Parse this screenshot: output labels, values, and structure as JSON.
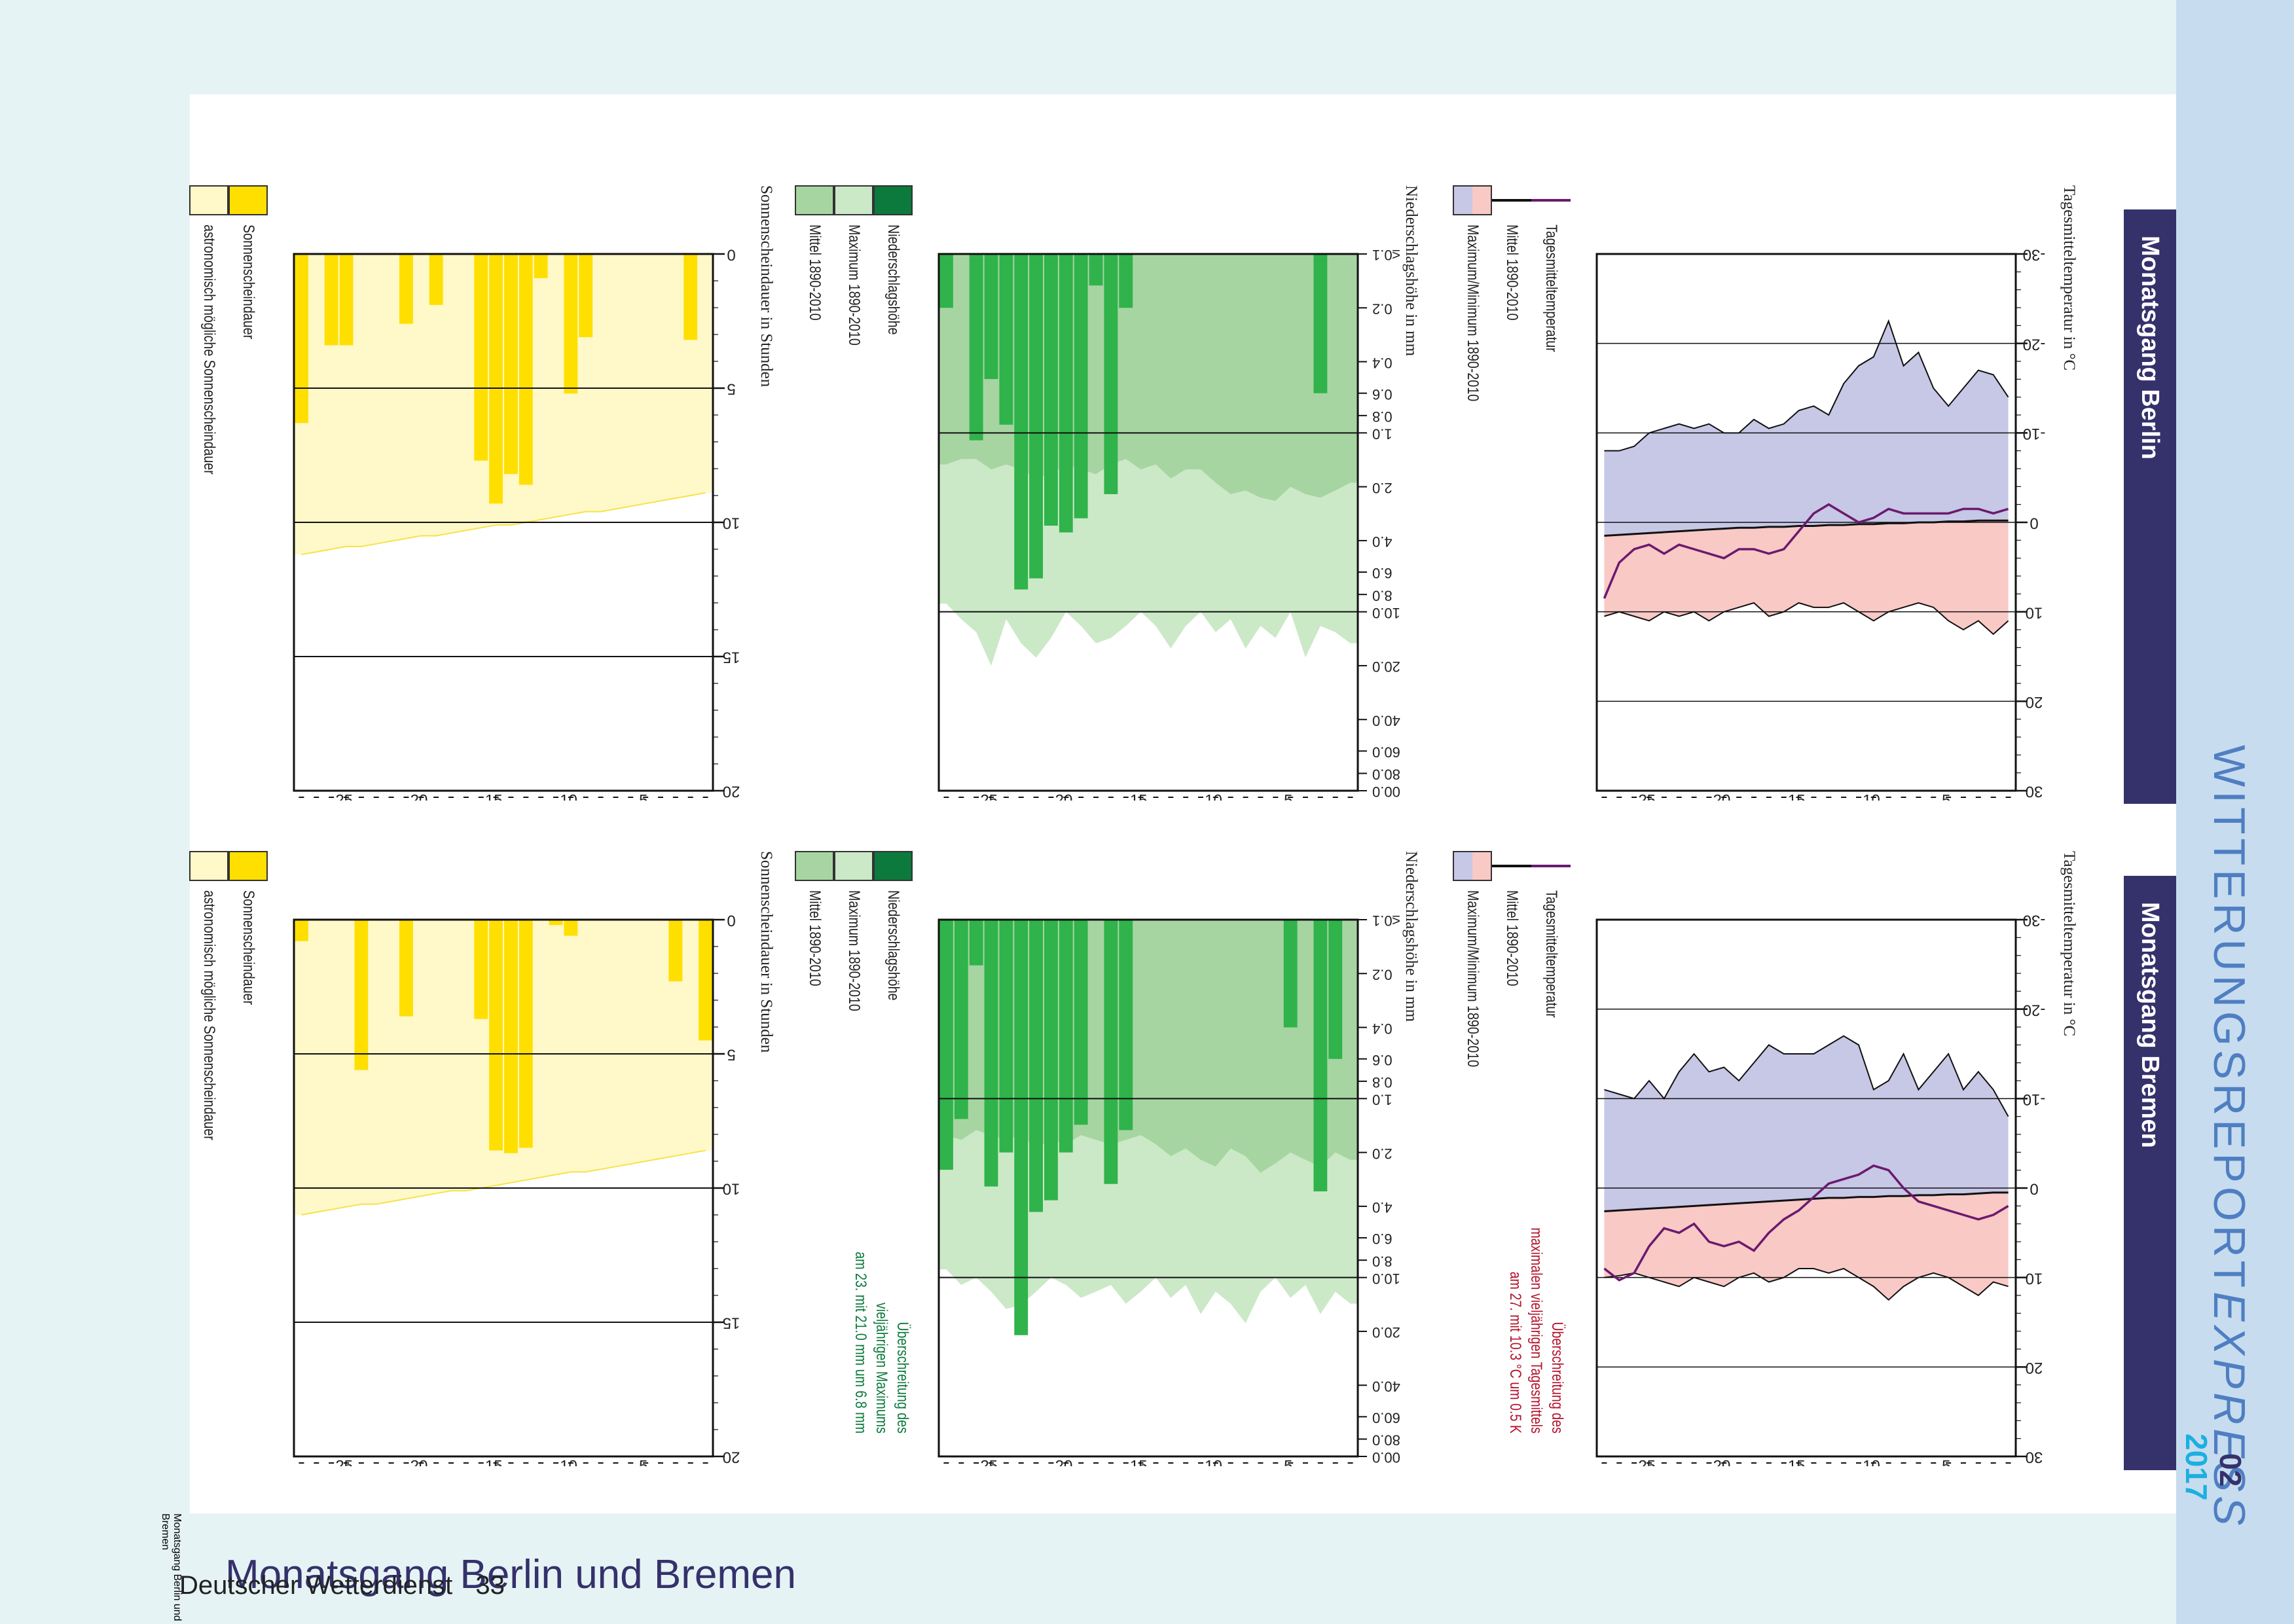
{
  "header": {
    "brand_main": "WITTERUNGSREPORT",
    "brand_italic": "EXPRESS",
    "issue_month": "02",
    "issue_year": "2017",
    "page_title": "Monatsgang Berlin und Bremen"
  },
  "footer": {
    "publisher": "Deutscher Wetterdienst",
    "page_number": "33"
  },
  "colors": {
    "top_band": "#c7dcef",
    "side_band": "#e6f3f5",
    "header_band": "#35316b",
    "brand_text": "#4f7fc2",
    "year_text": "#1ab0e0",
    "temp_max": "#f9c9c6",
    "temp_min": "#c7c7e6",
    "temp_daily": "#6b1a6e",
    "precip_bar": "#2fb34a",
    "precip_max": "#cbe9c7",
    "precip_mean": "#a6d5a2",
    "precip_legend_dark": "#0c7a3c",
    "sun_bar": "#ffdf00",
    "sun_astro": "#fff8c8",
    "note_red": "#b3122b",
    "note_green": "#0c7a3c"
  },
  "panels": [
    {
      "station_title": "Monatsgang Berlin",
      "temp_title": "Tagesmitteltemperatur in °C",
      "precip_title": "Niederschlagshöhe in mm",
      "sun_title": "Sonnenscheindauer in Stunden",
      "temp_legend": [
        "Tagesmitteltemperatur",
        "Mittel 1890-2010",
        "Maximum/Minimum 1890-2010"
      ],
      "precip_legend": [
        "Niederschlagshöhe",
        "Maximum 1890-2010",
        "Mittel 1890-2010"
      ],
      "sun_legend": [
        "Sonnenscheindauer",
        "astronomisch mögliche Sonnenscheindauer"
      ],
      "temp_note": "",
      "precip_note": ""
    },
    {
      "station_title": "Monatsgang Bremen",
      "temp_title": "Tagesmitteltemperatur in °C",
      "precip_title": "Niederschlagshöhe in mm",
      "sun_title": "Sonnenscheindauer in Stunden",
      "temp_legend": [
        "Tagesmitteltemperatur",
        "Mittel 1890-2010",
        "Maximum/Minimum 1890-2010"
      ],
      "precip_legend": [
        "Niederschlagshöhe",
        "Maximum 1890-2010",
        "Mittel 1890-2010"
      ],
      "sun_legend": [
        "Sonnenscheindauer",
        "astronomisch mögliche Sonnenscheindauer"
      ],
      "temp_note": "Überschreitung des\nmaximalen vieljährigen Tagesmittels\nam 27. mit 10.3 °C um 0.5 K",
      "precip_note": "Überschreitung des\nvieljährigen Maximums\nam 23. mit 21.0 mm um 6.8 mm"
    }
  ],
  "chart_data": [
    {
      "station": "Berlin",
      "type": "line",
      "xlabel": "",
      "ylabel": "Tagesmitteltemperatur in °C",
      "x_ticks": [
        "5.",
        "10.",
        "15.",
        "20.",
        "25."
      ],
      "y_ticks": [
        "-30",
        "-20",
        "-10",
        "0",
        "10",
        "20",
        "30"
      ],
      "xlim": [
        0.5,
        28.5
      ],
      "ylim": [
        -30,
        30
      ],
      "x": [
        1,
        2,
        3,
        4,
        5,
        6,
        7,
        8,
        9,
        10,
        11,
        12,
        13,
        14,
        15,
        16,
        17,
        18,
        19,
        20,
        21,
        22,
        23,
        24,
        25,
        26,
        27,
        28
      ],
      "series": [
        {
          "name": "Tagesmitteltemperatur",
          "values": [
            -1.5,
            -1,
            -1.5,
            -1.5,
            -1,
            -1,
            -1,
            -1,
            -1.5,
            -0.5,
            0,
            -1,
            -2,
            -1,
            1,
            3,
            3.5,
            3,
            3,
            4,
            3.5,
            3,
            2.5,
            3.5,
            2.5,
            3,
            4.5,
            8.5
          ]
        },
        {
          "name": "Mittel 1890-2010",
          "values": [
            -0.2,
            -0.2,
            -0.2,
            -0.1,
            -0.1,
            0,
            0,
            0.1,
            0.1,
            0.2,
            0.2,
            0.3,
            0.3,
            0.4,
            0.4,
            0.5,
            0.5,
            0.6,
            0.6,
            0.7,
            0.8,
            0.9,
            1,
            1.1,
            1.2,
            1.3,
            1.4,
            1.5
          ]
        },
        {
          "name": "Maximum 1890-2010",
          "values": [
            11,
            12.5,
            11,
            12,
            11,
            9.5,
            9,
            9.5,
            10,
            11,
            10,
            9,
            9.5,
            9.5,
            9,
            10,
            10.5,
            9,
            9.5,
            10,
            11,
            10,
            10.5,
            10,
            11,
            10.5,
            10,
            10.5
          ]
        },
        {
          "name": "Minimum 1890-2010",
          "values": [
            -14,
            -16.5,
            -17,
            -15,
            -13,
            -15,
            -19,
            -17.5,
            -22.5,
            -18.5,
            -17.5,
            -15.5,
            -12,
            -13,
            -12.5,
            -11,
            -10.5,
            -11.5,
            -10,
            -10,
            -11,
            -10.5,
            -11,
            -10.5,
            -10,
            -8.5,
            -8,
            -8
          ]
        }
      ]
    },
    {
      "station": "Berlin",
      "type": "bar",
      "xlabel": "",
      "ylabel": "Niederschlagshöhe in mm",
      "x_ticks": [
        "5.",
        "10.",
        "15.",
        "20.",
        "25."
      ],
      "y_ticks": [
        "≤0.1",
        "0.2",
        "0.4",
        "0.6",
        "0.8",
        "1.0",
        "2.0",
        "4.0",
        "6.0",
        "8.0",
        "10.0",
        "20.0",
        "40.0",
        "60.0",
        "80.0",
        "100.0"
      ],
      "y_scale": "log",
      "ylim": [
        0.1,
        100
      ],
      "categories": [
        1,
        2,
        3,
        4,
        5,
        6,
        7,
        8,
        9,
        10,
        11,
        12,
        13,
        14,
        15,
        16,
        17,
        18,
        19,
        20,
        21,
        22,
        23,
        24,
        25,
        26,
        27,
        28
      ],
      "series": [
        {
          "name": "Niederschlagshöhe",
          "values": [
            0,
            0,
            0.6,
            0,
            0,
            0,
            0,
            0,
            0,
            0,
            0,
            0,
            0,
            0,
            0,
            0.2,
            2.2,
            0.15,
            3,
            3.6,
            3.3,
            6.5,
            7.5,
            0.9,
            0.5,
            1.1,
            0,
            0.2
          ]
        },
        {
          "name": "Maximum 1890-2010",
          "values": [
            15,
            13,
            12,
            18,
            10,
            14,
            12,
            16,
            11,
            13,
            10,
            12,
            16,
            12,
            10,
            12,
            14,
            15,
            12,
            10,
            14,
            18,
            15,
            11,
            20,
            13,
            11,
            9
          ]
        },
        {
          "name": "Mittel 1890-2010",
          "values": [
            1.9,
            2.1,
            2.3,
            2.2,
            2,
            2.4,
            2.3,
            2.1,
            2.2,
            1.9,
            1.6,
            1.6,
            1.8,
            1.5,
            1.6,
            1.4,
            1.5,
            1.7,
            1.6,
            1.5,
            1.7,
            1.8,
            1.6,
            1.5,
            1.6,
            1.4,
            1.4,
            1.5
          ]
        }
      ]
    },
    {
      "station": "Berlin",
      "type": "bar",
      "xlabel": "",
      "ylabel": "Sonnenscheindauer in Stunden",
      "x_ticks": [
        "5.",
        "10.",
        "15.",
        "20.",
        "25."
      ],
      "y_ticks": [
        "0",
        "5",
        "10",
        "15",
        "20"
      ],
      "ylim": [
        0,
        20
      ],
      "categories": [
        1,
        2,
        3,
        4,
        5,
        6,
        7,
        8,
        9,
        10,
        11,
        12,
        13,
        14,
        15,
        16,
        17,
        18,
        19,
        20,
        21,
        22,
        23,
        24,
        25,
        26,
        27,
        28
      ],
      "series": [
        {
          "name": "Sonnenscheindauer",
          "values": [
            0,
            3.2,
            0,
            0,
            0,
            0,
            0,
            0,
            3.1,
            5.2,
            0,
            0.9,
            8.6,
            8.2,
            9.3,
            7.7,
            0,
            0,
            1.9,
            0,
            2.6,
            0,
            0,
            0,
            3.4,
            3.4,
            0,
            6.3
          ]
        },
        {
          "name": "astronomisch mögliche Sonnenscheindauer",
          "values": [
            8.9,
            9,
            9.1,
            9.2,
            9.3,
            9.4,
            9.5,
            9.6,
            9.6,
            9.7,
            9.8,
            9.9,
            10,
            10.1,
            10.1,
            10.2,
            10.3,
            10.4,
            10.5,
            10.5,
            10.6,
            10.7,
            10.8,
            10.9,
            10.9,
            11,
            11.1,
            11.2
          ]
        }
      ]
    },
    {
      "station": "Bremen",
      "type": "line",
      "xlabel": "",
      "ylabel": "Tagesmitteltemperatur in °C",
      "x_ticks": [
        "5.",
        "10.",
        "15.",
        "20.",
        "25."
      ],
      "y_ticks": [
        "-30",
        "-20",
        "-10",
        "0",
        "10",
        "20",
        "30"
      ],
      "xlim": [
        0.5,
        28.5
      ],
      "ylim": [
        -30,
        30
      ],
      "x": [
        1,
        2,
        3,
        4,
        5,
        6,
        7,
        8,
        9,
        10,
        11,
        12,
        13,
        14,
        15,
        16,
        17,
        18,
        19,
        20,
        21,
        22,
        23,
        24,
        25,
        26,
        27,
        28
      ],
      "series": [
        {
          "name": "Tagesmitteltemperatur",
          "values": [
            2,
            3,
            3.5,
            3,
            2.5,
            2,
            1.5,
            0,
            -2,
            -2.5,
            -1.5,
            -1,
            -0.5,
            1,
            2.5,
            3.5,
            5,
            7,
            6,
            6.5,
            6,
            4,
            5,
            4.5,
            6.5,
            9.5,
            10.3,
            9
          ]
        },
        {
          "name": "Mittel 1890-2010",
          "values": [
            0.5,
            0.5,
            0.6,
            0.7,
            0.7,
            0.8,
            0.8,
            0.9,
            0.9,
            1,
            1,
            1.1,
            1.1,
            1.2,
            1.3,
            1.4,
            1.5,
            1.6,
            1.7,
            1.8,
            1.9,
            2,
            2.1,
            2.2,
            2.3,
            2.4,
            2.5,
            2.6
          ]
        },
        {
          "name": "Maximum 1890-2010",
          "values": [
            11,
            10.5,
            12,
            11,
            10,
            9.5,
            10,
            11,
            12.5,
            11,
            10,
            9,
            9.5,
            9,
            9,
            10,
            10.5,
            9.5,
            10,
            11,
            10.5,
            10,
            11,
            10.5,
            10,
            9.5,
            9.8,
            10
          ]
        },
        {
          "name": "Minimum 1890-2010",
          "values": [
            -8,
            -11,
            -13,
            -11,
            -15,
            -13,
            -11,
            -15,
            -12,
            -11,
            -16,
            -17,
            -16,
            -15,
            -15,
            -15,
            -16,
            -14,
            -12,
            -13.5,
            -13,
            -15,
            -13,
            -10,
            -12,
            -10,
            -10.5,
            -11
          ]
        }
      ]
    },
    {
      "station": "Bremen",
      "type": "bar",
      "xlabel": "",
      "ylabel": "Niederschlagshöhe in mm",
      "x_ticks": [
        "5.",
        "10.",
        "15.",
        "20.",
        "25."
      ],
      "y_ticks": [
        "≤0.1",
        "0.2",
        "0.4",
        "0.6",
        "0.8",
        "1.0",
        "2.0",
        "4.0",
        "6.0",
        "8.0",
        "10.0",
        "20.0",
        "40.0",
        "60.0",
        "80.0",
        "100.0"
      ],
      "y_scale": "log",
      "ylim": [
        0.1,
        100
      ],
      "categories": [
        1,
        2,
        3,
        4,
        5,
        6,
        7,
        8,
        9,
        10,
        11,
        12,
        13,
        14,
        15,
        16,
        17,
        18,
        19,
        20,
        21,
        22,
        23,
        24,
        25,
        26,
        27,
        28
      ],
      "series": [
        {
          "name": "Niederschlagshöhe",
          "values": [
            0,
            0.6,
            3.3,
            0,
            0.4,
            0,
            0,
            0,
            0,
            0,
            0,
            0,
            0,
            0,
            0,
            1.5,
            3,
            0,
            1.4,
            2,
            3.7,
            4.3,
            21,
            2,
            3.1,
            0.18,
            1.3,
            2.5
          ]
        },
        {
          "name": "Maximum 1890-2010",
          "values": [
            14,
            12,
            16,
            11,
            13,
            10,
            12,
            18,
            14,
            12,
            16,
            11,
            13,
            10,
            12,
            14,
            11,
            12,
            13,
            11,
            10,
            12,
            14.2,
            15,
            12,
            10,
            11,
            9
          ]
        },
        {
          "name": "Mittel 1890-2010",
          "values": [
            2.2,
            2,
            2.4,
            2.2,
            2,
            2.3,
            2.6,
            2.1,
            1.9,
            2.4,
            2.2,
            1.9,
            2.1,
            1.8,
            1.6,
            1.7,
            1.8,
            1.7,
            1.6,
            1.8,
            1.7,
            1.9,
            1.6,
            1.7,
            1.6,
            1.5,
            1.7,
            1.6
          ]
        }
      ]
    },
    {
      "station": "Bremen",
      "type": "bar",
      "xlabel": "",
      "ylabel": "Sonnenscheindauer in Stunden",
      "x_ticks": [
        "5.",
        "10.",
        "15.",
        "20.",
        "25."
      ],
      "y_ticks": [
        "0",
        "5",
        "10",
        "15",
        "20"
      ],
      "ylim": [
        0,
        20
      ],
      "categories": [
        1,
        2,
        3,
        4,
        5,
        6,
        7,
        8,
        9,
        10,
        11,
        12,
        13,
        14,
        15,
        16,
        17,
        18,
        19,
        20,
        21,
        22,
        23,
        24,
        25,
        26,
        27,
        28
      ],
      "series": [
        {
          "name": "Sonnenscheindauer",
          "values": [
            4.5,
            0,
            2.3,
            0,
            0,
            0,
            0,
            0,
            0,
            0.6,
            0.2,
            0,
            8.5,
            8.7,
            8.6,
            3.7,
            0,
            0,
            0,
            0,
            3.6,
            0,
            0,
            5.6,
            0,
            0,
            0,
            0.8
          ]
        },
        {
          "name": "astronomisch mögliche Sonnenscheindauer",
          "values": [
            8.6,
            8.7,
            8.8,
            8.9,
            9,
            9.1,
            9.2,
            9.3,
            9.4,
            9.4,
            9.5,
            9.6,
            9.7,
            9.8,
            9.9,
            10,
            10.1,
            10.1,
            10.2,
            10.3,
            10.4,
            10.5,
            10.6,
            10.6,
            10.7,
            10.8,
            10.9,
            11
          ]
        }
      ]
    }
  ]
}
